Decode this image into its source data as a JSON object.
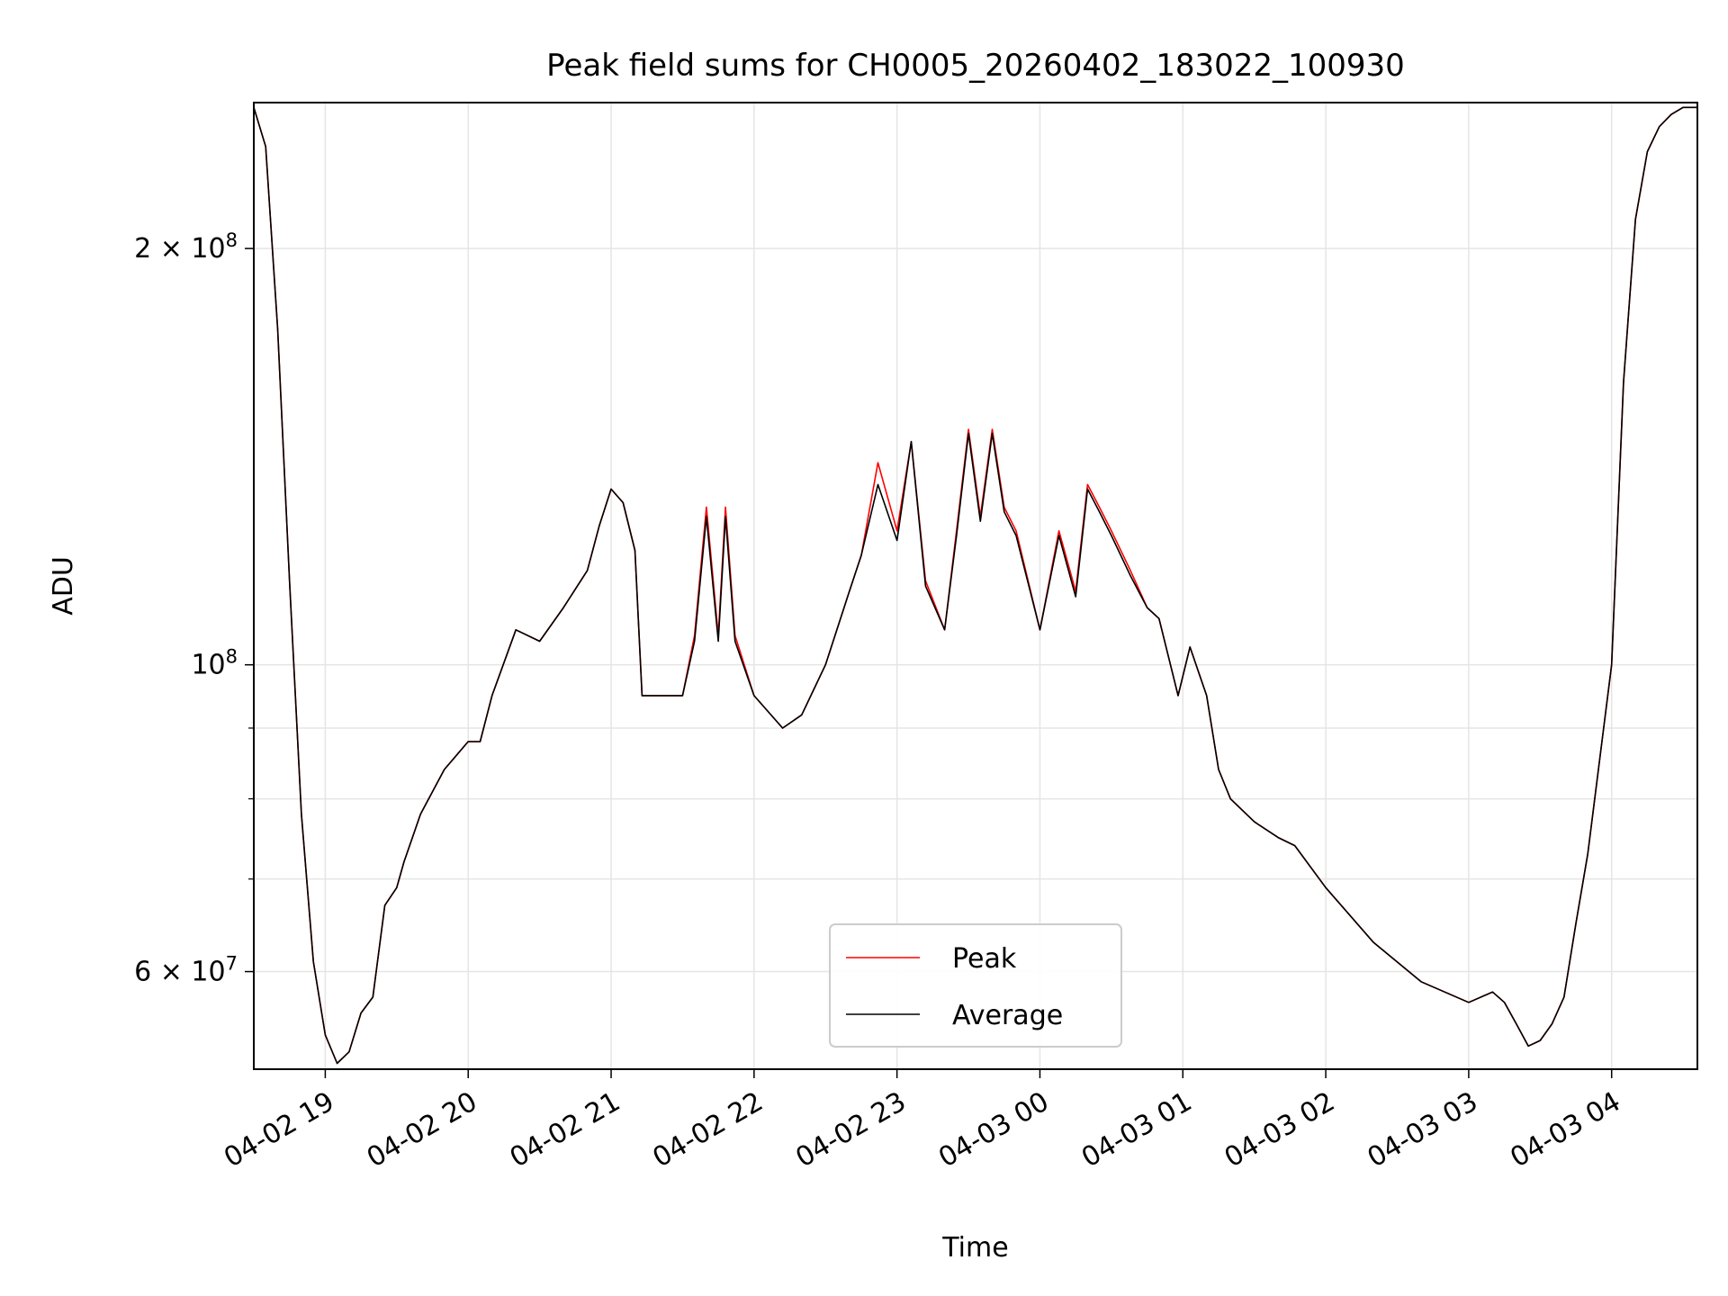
{
  "chart_data": {
    "type": "line",
    "title": "Peak field sums for CH0005_20260402_183022_100930",
    "xlabel": "Time",
    "ylabel": "ADU",
    "yscale": "log",
    "ylim": [
      51000000,
      255000000
    ],
    "xlim": [
      "2026-04-02 18:30",
      "2026-04-03 04:36"
    ],
    "xticks": [
      "04-02 19",
      "04-02 20",
      "04-02 21",
      "04-02 22",
      "04-02 23",
      "04-03 00",
      "04-03 01",
      "04-03 02",
      "04-03 03",
      "04-03 04"
    ],
    "yticks": [
      {
        "value": 60000000,
        "label": "6 × 10⁷",
        "mantissa": "6",
        "exponent": "7"
      },
      {
        "value": 100000000,
        "label": "10⁸",
        "mantissa": "",
        "exponent": "8"
      },
      {
        "value": 200000000,
        "label": "2 × 10⁸",
        "mantissa": "2",
        "exponent": "8"
      }
    ],
    "yminor_ticks": [
      70000000,
      80000000,
      90000000
    ],
    "grid": true,
    "legend_position": "lower-center",
    "x": [
      "2026-04-02 18:30",
      "2026-04-02 18:35",
      "2026-04-02 18:40",
      "2026-04-02 18:45",
      "2026-04-02 18:50",
      "2026-04-02 18:55",
      "2026-04-02 19:00",
      "2026-04-02 19:05",
      "2026-04-02 19:10",
      "2026-04-02 19:15",
      "2026-04-02 19:20",
      "2026-04-02 19:25",
      "2026-04-02 19:30",
      "2026-04-02 19:33",
      "2026-04-02 19:40",
      "2026-04-02 19:50",
      "2026-04-02 20:00",
      "2026-04-02 20:05",
      "2026-04-02 20:10",
      "2026-04-02 20:20",
      "2026-04-02 20:30",
      "2026-04-02 20:40",
      "2026-04-02 20:50",
      "2026-04-02 20:55",
      "2026-04-02 21:00",
      "2026-04-02 21:05",
      "2026-04-02 21:10",
      "2026-04-02 21:13",
      "2026-04-02 21:20",
      "2026-04-02 21:30",
      "2026-04-02 21:35",
      "2026-04-02 21:40",
      "2026-04-02 21:45",
      "2026-04-02 21:48",
      "2026-04-02 21:52",
      "2026-04-02 22:00",
      "2026-04-02 22:12",
      "2026-04-02 22:20",
      "2026-04-02 22:30",
      "2026-04-02 22:40",
      "2026-04-02 22:45",
      "2026-04-02 22:52",
      "2026-04-02 23:00",
      "2026-04-02 23:06",
      "2026-04-02 23:12",
      "2026-04-02 23:20",
      "2026-04-02 23:25",
      "2026-04-02 23:30",
      "2026-04-02 23:35",
      "2026-04-02 23:40",
      "2026-04-02 23:45",
      "2026-04-02 23:50",
      "2026-04-03 00:00",
      "2026-04-03 00:08",
      "2026-04-03 00:15",
      "2026-04-03 00:20",
      "2026-04-03 00:25",
      "2026-04-03 00:30",
      "2026-04-03 00:38",
      "2026-04-03 00:45",
      "2026-04-03 00:50",
      "2026-04-03 00:58",
      "2026-04-03 01:03",
      "2026-04-03 01:10",
      "2026-04-03 01:15",
      "2026-04-03 01:20",
      "2026-04-03 01:30",
      "2026-04-03 01:40",
      "2026-04-03 01:47",
      "2026-04-03 02:00",
      "2026-04-03 02:20",
      "2026-04-03 02:40",
      "2026-04-03 03:00",
      "2026-04-03 03:10",
      "2026-04-03 03:15",
      "2026-04-03 03:20",
      "2026-04-03 03:25",
      "2026-04-03 03:30",
      "2026-04-03 03:35",
      "2026-04-03 03:40",
      "2026-04-03 03:45",
      "2026-04-03 03:50",
      "2026-04-03 04:00",
      "2026-04-03 04:05",
      "2026-04-03 04:10",
      "2026-04-03 04:15",
      "2026-04-03 04:20",
      "2026-04-03 04:25",
      "2026-04-03 04:30",
      "2026-04-03 04:36"
    ],
    "series": [
      {
        "name": "Peak",
        "color": "#ff0000",
        "values": [
          253000000,
          237000000,
          175000000,
          115000000,
          78000000,
          61000000,
          54000000,
          51500000,
          52500000,
          56000000,
          57500000,
          67000000,
          69000000,
          72000000,
          78000000,
          84000000,
          88000000,
          88000000,
          95000000,
          106000000,
          104000000,
          110000000,
          117000000,
          126000000,
          134000000,
          131000000,
          121000000,
          95000000,
          95000000,
          95000000,
          105000000,
          130000000,
          105000000,
          130000000,
          105000000,
          95000000,
          90000000,
          92000000,
          100000000,
          113000000,
          120000000,
          140000000,
          125000000,
          145000000,
          115000000,
          106000000,
          125000000,
          148000000,
          128000000,
          148000000,
          130000000,
          125000000,
          106000000,
          125000000,
          113000000,
          135000000,
          130000000,
          125000000,
          117000000,
          110000000,
          108000000,
          95000000,
          103000000,
          95000000,
          84000000,
          80000000,
          77000000,
          75000000,
          74000000,
          69000000,
          63000000,
          59000000,
          57000000,
          58000000,
          57000000,
          55000000,
          53000000,
          53500000,
          55000000,
          57500000,
          65000000,
          73000000,
          100000000,
          160000000,
          210000000,
          235000000,
          245000000,
          250000000,
          253000000,
          253000000
        ]
      },
      {
        "name": "Average",
        "color": "#000000",
        "values": [
          253000000,
          237000000,
          175000000,
          115000000,
          78000000,
          61000000,
          54000000,
          51500000,
          52500000,
          56000000,
          57500000,
          67000000,
          69000000,
          72000000,
          78000000,
          84000000,
          88000000,
          88000000,
          95000000,
          106000000,
          104000000,
          110000000,
          117000000,
          126000000,
          134000000,
          131000000,
          121000000,
          95000000,
          95000000,
          95000000,
          104000000,
          128000000,
          104000000,
          128000000,
          104000000,
          95000000,
          90000000,
          92000000,
          100000000,
          113000000,
          120000000,
          135000000,
          123000000,
          145000000,
          114000000,
          106000000,
          124000000,
          147000000,
          127000000,
          147000000,
          129000000,
          124000000,
          106000000,
          124000000,
          112000000,
          134000000,
          129000000,
          124000000,
          116000000,
          110000000,
          108000000,
          95000000,
          103000000,
          95000000,
          84000000,
          80000000,
          77000000,
          75000000,
          74000000,
          69000000,
          63000000,
          59000000,
          57000000,
          58000000,
          57000000,
          55000000,
          53000000,
          53500000,
          55000000,
          57500000,
          65000000,
          73000000,
          100000000,
          160000000,
          210000000,
          235000000,
          245000000,
          250000000,
          253000000,
          253000000
        ]
      }
    ]
  }
}
